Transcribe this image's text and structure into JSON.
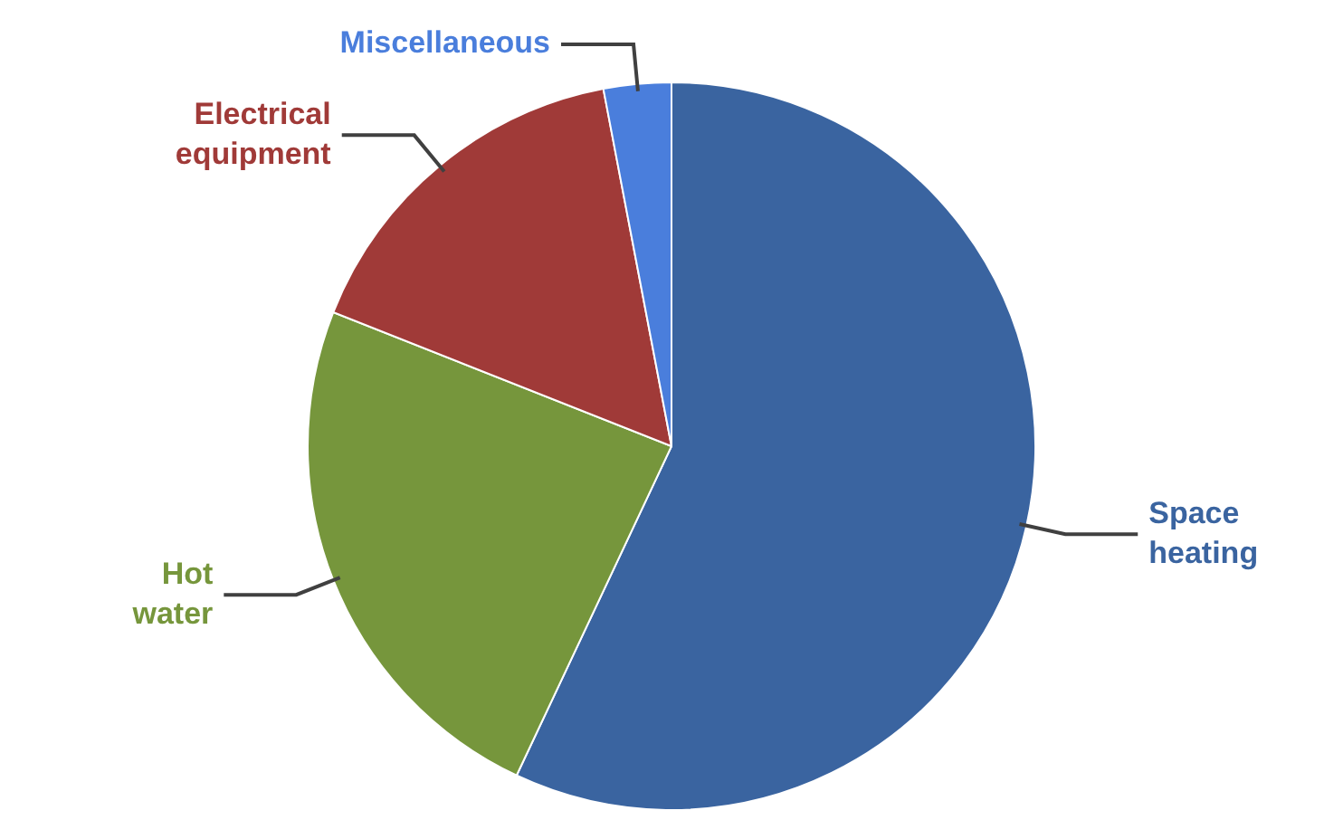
{
  "chart_data": {
    "type": "pie",
    "categories": [
      "Space heating",
      "Hot water",
      "Electrical equipment",
      "Miscellaneous"
    ],
    "values": [
      57,
      24,
      16,
      3
    ],
    "colors": [
      "#3a64a0",
      "#76963c",
      "#a03a38",
      "#4a7edc"
    ]
  }
}
